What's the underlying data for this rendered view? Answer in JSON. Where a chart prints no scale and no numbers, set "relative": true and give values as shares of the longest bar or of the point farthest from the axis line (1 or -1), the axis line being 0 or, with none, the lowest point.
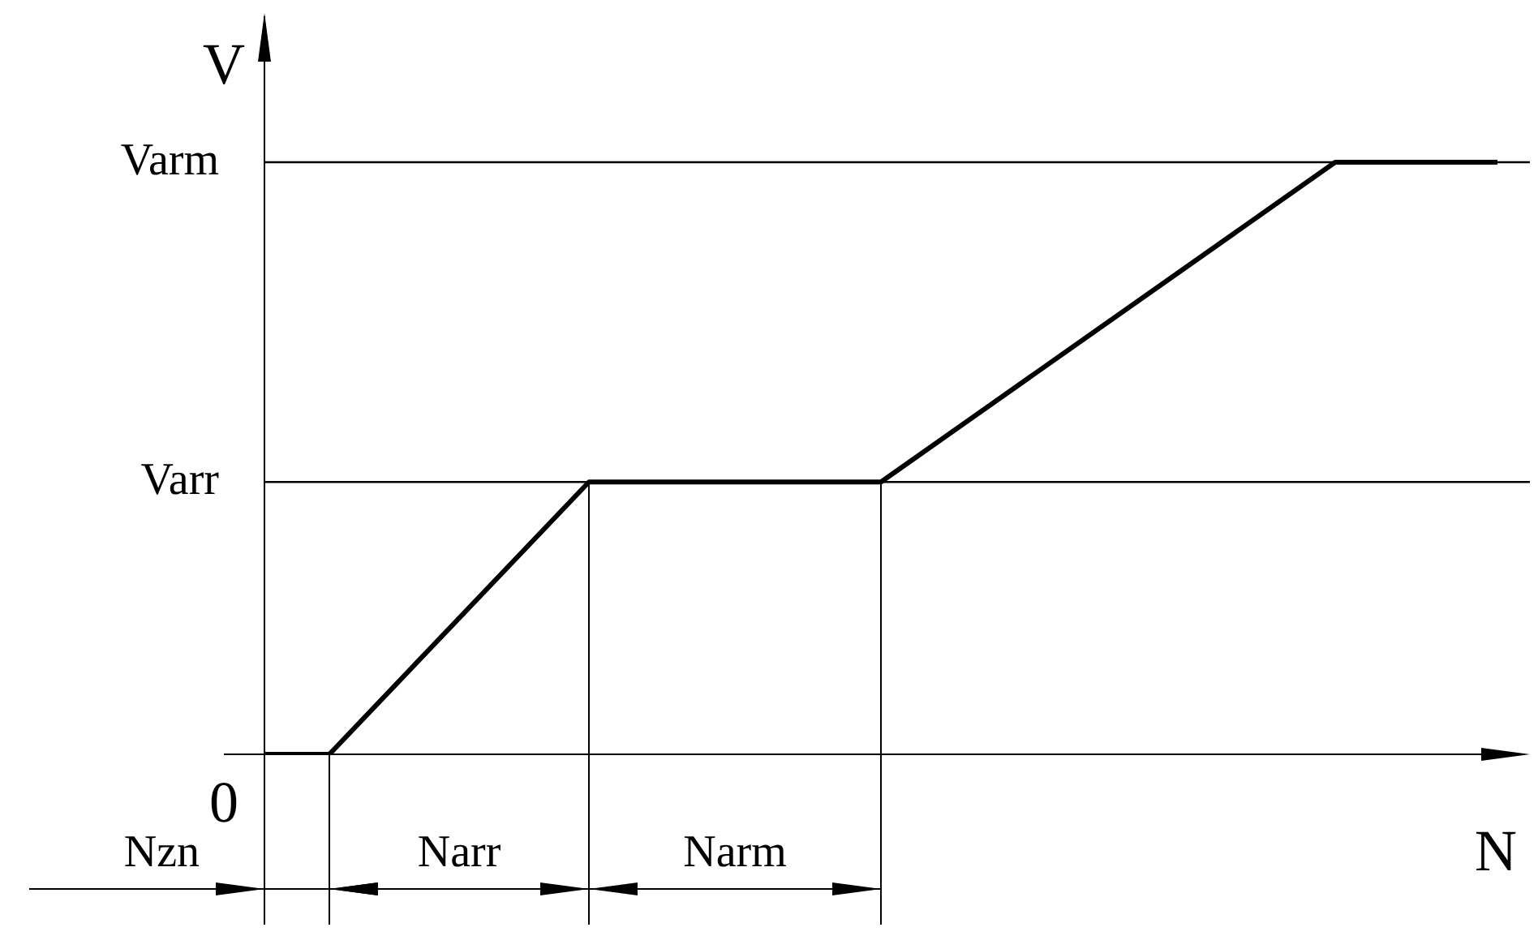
{
  "chart_data": {
    "type": "line",
    "relative": true,
    "xlabel": "N",
    "ylabel": "V",
    "categories": [
      null,
      null,
      null,
      null,
      null,
      null,
      null,
      null,
      null,
      null,
      null,
      null,
      null,
      null,
      null,
      null,
      null,
      null,
      null,
      null,
      null,
      null,
      null,
      null,
      null,
      null,
      null,
      null,
      null,
      null,
      null,
      null,
      null,
      null,
      null,
      null,
      null,
      null,
      null,
      null
    ],
    "values": [
      0,
      null,
      0,
      null,
      null,
      null,
      null,
      null,
      null,
      null,
      0.46,
      null,
      null,
      null,
      null,
      null,
      null,
      null,
      null,
      0.46,
      null,
      null,
      null,
      null,
      null,
      null,
      null,
      null,
      null,
      null,
      null,
      null,
      null,
      1,
      null,
      null,
      null,
      null,
      1,
      null
    ],
    "color": "#000000",
    "line_style": "solid",
    "marker": "none",
    "legend": false,
    "tick_labels": false,
    "ref_lines": [
      {
        "axis": "y",
        "value": 0.46,
        "label": "Varr"
      },
      {
        "axis": "y",
        "value": 1,
        "label": "Varm"
      }
    ],
    "annotations": [
      "0",
      "Nzn",
      "Narr",
      "Narm"
    ]
  }
}
